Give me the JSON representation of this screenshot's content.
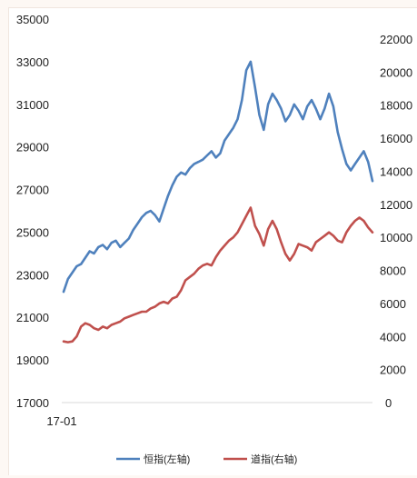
{
  "chart_data": {
    "type": "line",
    "title": "",
    "x_tick_labels": [
      "17-01"
    ],
    "y_left": {
      "ticks": [
        17000,
        19000,
        21000,
        23000,
        25000,
        27000,
        29000,
        31000,
        33000,
        35000
      ],
      "tick_labels": [
        "17000",
        "19000",
        "21000",
        "23000",
        "25000",
        "27000",
        "29000",
        "31000",
        "33000",
        "35000"
      ],
      "range": [
        17000,
        35000
      ]
    },
    "y_right": {
      "ticks": [
        0,
        2000,
        4000,
        6000,
        8000,
        10000,
        12000,
        14000,
        16000,
        18000,
        20000,
        22000
      ],
      "tick_labels": [
        "0",
        "2000",
        "4000",
        "6000",
        "8000",
        "10000",
        "12000",
        "14000",
        "16000",
        "18000",
        "20000",
        "22000"
      ],
      "range": [
        0,
        22000
      ]
    },
    "series": [
      {
        "name": "恒指(左轴)",
        "axis": "left",
        "color": "#4f81bd",
        "values": [
          22200,
          22800,
          23100,
          23400,
          23500,
          23800,
          24100,
          24000,
          24300,
          24400,
          24200,
          24500,
          24600,
          24300,
          24500,
          24700,
          25100,
          25400,
          25700,
          25900,
          26000,
          25800,
          25500,
          26100,
          26700,
          27200,
          27600,
          27800,
          27700,
          28000,
          28200,
          28300,
          28400,
          28600,
          28800,
          28500,
          28700,
          29300,
          29600,
          29900,
          30300,
          31200,
          32600,
          33000,
          31800,
          30500,
          29800,
          31000,
          31500,
          31200,
          30800,
          30200,
          30500,
          31000,
          30700,
          30300,
          30900,
          31200,
          30800,
          30300,
          30800,
          31500,
          30900,
          29700,
          28900,
          28200,
          27900,
          28200,
          28500,
          28800,
          28300,
          27400
        ],
        "x_range": [
          0,
          100
        ]
      },
      {
        "name": "道指(右轴)",
        "axis": "right",
        "color": "#c0504d",
        "values": [
          3700,
          3650,
          3700,
          4000,
          4600,
          4800,
          4700,
          4500,
          4400,
          4600,
          4500,
          4700,
          4800,
          4900,
          5100,
          5200,
          5300,
          5400,
          5500,
          5500,
          5700,
          5800,
          6000,
          6100,
          6000,
          6300,
          6400,
          6800,
          7400,
          7600,
          7800,
          8100,
          8300,
          8400,
          8300,
          8800,
          9200,
          9500,
          9800,
          10000,
          10300,
          10800,
          11300,
          11800,
          10700,
          10200,
          9500,
          10500,
          11000,
          10500,
          9700,
          9000,
          8600,
          9000,
          9600,
          9500,
          9400,
          9200,
          9700,
          9900,
          10100,
          10300,
          10100,
          9800,
          9700,
          10300,
          10700,
          11000,
          11200,
          11000,
          10600,
          10300
        ],
        "x_range": [
          0,
          100
        ]
      }
    ],
    "legend_position": "bottom",
    "grid": false
  }
}
